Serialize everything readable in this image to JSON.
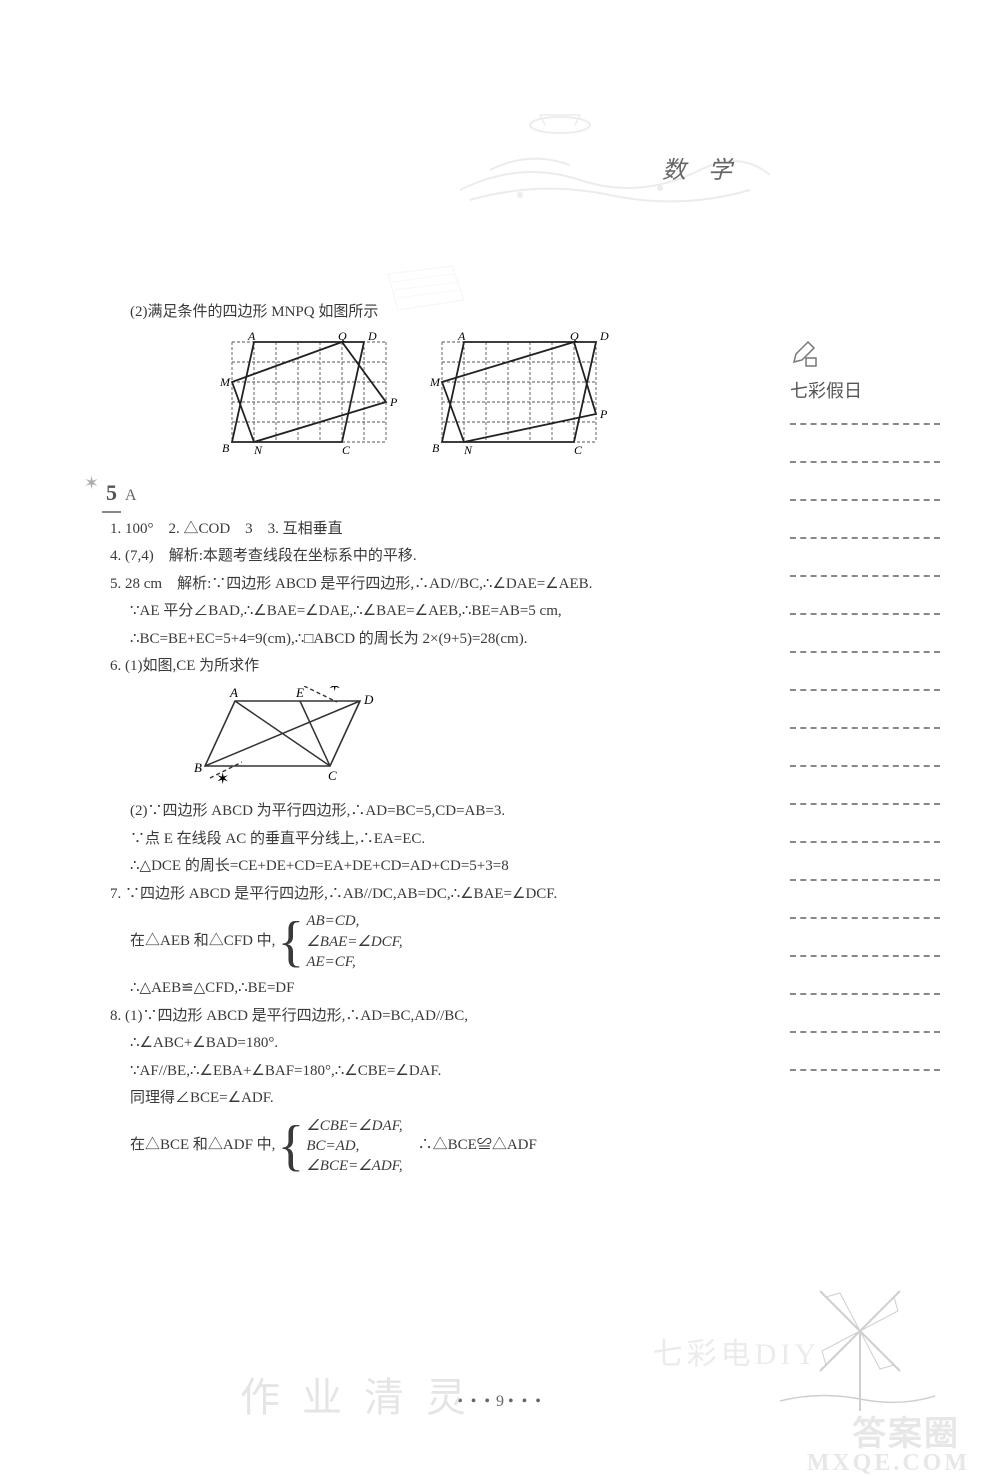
{
  "header": {
    "title": "数 学"
  },
  "sidebar": {
    "label": "七彩假日",
    "dash_count": 18
  },
  "content": {
    "intro": "(2)满足条件的四边形 MNPQ 如图所示",
    "grid_figs": {
      "labels": [
        "A",
        "Q",
        "D",
        "M",
        "P",
        "B",
        "N",
        "C"
      ],
      "cols": 7,
      "rows": 5,
      "pts1": {
        "A": [
          1,
          0
        ],
        "Q": [
          5,
          0
        ],
        "D": [
          6,
          0
        ],
        "M": [
          0,
          2
        ],
        "P": [
          7,
          3
        ],
        "B": [
          0,
          5
        ],
        "N": [
          1,
          5
        ],
        "C": [
          5,
          5
        ]
      },
      "pts2": {
        "A": [
          1,
          0
        ],
        "Q": [
          6,
          0
        ],
        "D": [
          7,
          0
        ],
        "M": [
          0,
          2
        ],
        "P": [
          7,
          3.6
        ],
        "B": [
          0,
          5
        ],
        "N": [
          1,
          5
        ],
        "C": [
          6,
          5
        ]
      }
    },
    "section": {
      "num": "5",
      "sub": "A"
    },
    "p1": "1. 100°　2. △COD　3　3. 互相垂直",
    "p4": "4. (7,4)　解析:本题考查线段在坐标系中的平移.",
    "p5a": "5. 28 cm　解析:∵四边形 ABCD 是平行四边形,∴AD//BC,∴∠DAE=∠AEB.",
    "p5b": "∵AE 平分∠BAD,∴∠BAE=∠DAE,∴∠BAE=∠AEB,∴BE=AB=5 cm,",
    "p5c": "∴BC=BE+EC=5+4=9(cm),∴□ABCD 的周长为 2×(9+5)=28(cm).",
    "p6a": "6. (1)如图,CE 为所求作",
    "p6b": "(2)∵四边形 ABCD 为平行四边形,∴AD=BC=5,CD=AB=3.",
    "p6c": "∵点 E 在线段 AC 的垂直平分线上,∴EA=EC.",
    "p6d": "∴△DCE 的周长=CE+DE+CD=EA+DE+CD=AD+CD=5+3=8",
    "p7a": "7. ∵四边形 ABCD 是平行四边形,∴AB//DC,AB=DC,∴∠BAE=∠DCF.",
    "p7b_prefix": "在△AEB 和△CFD 中,",
    "p7b_lines": [
      "AB=CD,",
      "∠BAE=∠DCF,",
      "AE=CF,"
    ],
    "p7c": "∴△AEB≌△CFD,∴BE=DF",
    "p8a": "8. (1)∵四边形 ABCD 是平行四边形,∴AD=BC,AD//BC,",
    "p8b": "∴∠ABC+∠BAD=180°.",
    "p8c": "∵AF//BE,∴∠EBA+∠BAF=180°,∴∠CBE=∠DAF.",
    "p8d": "同理得∠BCE=∠ADF.",
    "p8e_prefix": "在△BCE 和△ADF 中,",
    "p8e_lines": [
      "∠CBE=∠DAF,",
      "BC=AD,",
      "∠BCE=∠ADF,"
    ],
    "p8e_suffix": "　∴△BCE≌△ADF"
  },
  "footer": {
    "page": "9"
  },
  "watermarks": {
    "w1": "作 业 清 灵",
    "w2": "七彩电DIY",
    "w3": "答案圈",
    "w4": "MXQE.COM"
  },
  "colors": {
    "text": "#3a3a3a",
    "dash": "#888888",
    "bg": "#ffffff"
  }
}
